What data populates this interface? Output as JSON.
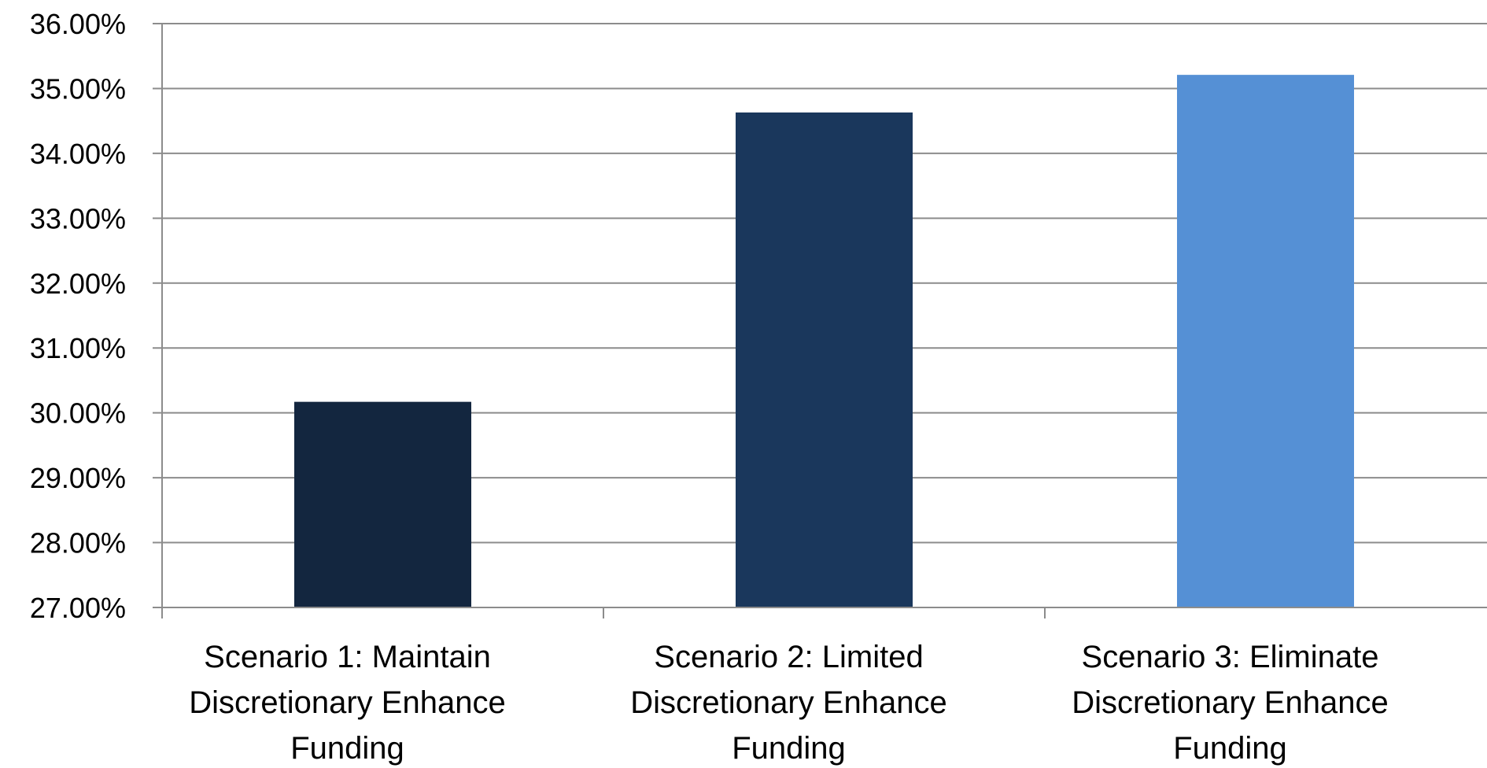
{
  "chart_data": {
    "type": "bar",
    "categories": [
      [
        "Scenario 1: Maintain",
        "Discretionary Enhance",
        "Funding"
      ],
      [
        "Scenario 2: Limited",
        "Discretionary Enhance",
        "Funding"
      ],
      [
        "Scenario 3: Eliminate",
        "Discretionary Enhance",
        "Funding"
      ]
    ],
    "values": [
      30.17,
      34.63,
      35.21
    ],
    "colors": [
      "#13263f",
      "#1a375c",
      "#5590d5"
    ],
    "ylim": [
      27,
      36
    ],
    "yticks": [
      "27.00%",
      "28.00%",
      "29.00%",
      "30.00%",
      "31.00%",
      "32.00%",
      "33.00%",
      "34.00%",
      "35.00%",
      "36.00%"
    ],
    "grid": true,
    "title": "",
    "xlabel": "",
    "ylabel": ""
  }
}
